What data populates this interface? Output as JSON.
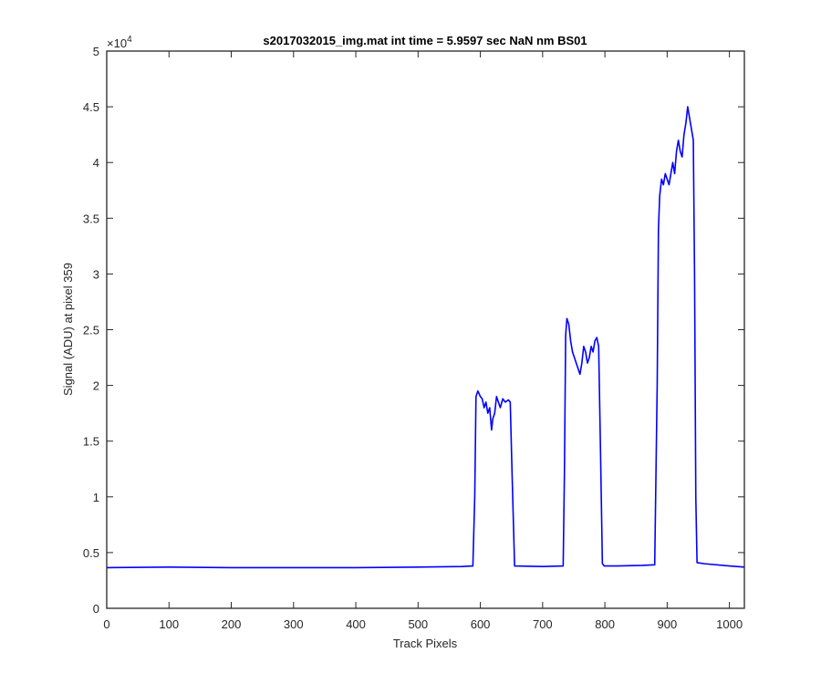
{
  "chart_data": {
    "type": "line",
    "title": "s2017032015_img.mat int time = 5.9597 sec  NaN nm BS01",
    "xlabel": "Track Pixels",
    "ylabel": "Signal (ADU) at pixel 359",
    "xlim": [
      0,
      1024
    ],
    "ylim": [
      0,
      50000
    ],
    "x_ticks": [
      0,
      100,
      200,
      300,
      400,
      500,
      600,
      700,
      800,
      900,
      1000
    ],
    "x_tick_labels": [
      "0",
      "100",
      "200",
      "300",
      "400",
      "500",
      "600",
      "700",
      "800",
      "900",
      "1000"
    ],
    "y_ticks": [
      0,
      5000,
      10000,
      15000,
      20000,
      25000,
      30000,
      35000,
      40000,
      45000,
      50000
    ],
    "y_tick_labels": [
      "0",
      "0.5",
      "1",
      "1.5",
      "2",
      "2.5",
      "3",
      "3.5",
      "4",
      "4.5",
      "5"
    ],
    "y_exponent": {
      "base": "×10",
      "power": "4"
    },
    "grid": false,
    "line_color": "#0000ff",
    "series": [
      {
        "values_x": [
          0,
          100,
          200,
          300,
          400,
          500,
          570,
          588,
          591,
          593,
          596,
          600,
          603,
          606,
          609,
          612,
          615,
          618,
          620,
          623,
          626,
          629,
          632,
          636,
          640,
          645,
          648,
          651,
          655,
          700,
          733,
          735,
          737,
          739,
          742,
          745,
          748,
          751,
          754,
          757,
          760,
          763,
          766,
          769,
          772,
          775,
          778,
          781,
          784,
          787,
          790,
          793,
          796,
          799,
          820,
          860,
          880,
          884,
          886,
          888,
          891,
          894,
          897,
          900,
          903,
          906,
          909,
          912,
          915,
          918,
          921,
          924,
          927,
          930,
          933,
          936,
          939,
          942,
          944,
          946,
          948,
          960,
          1000,
          1024
        ],
        "values_y": [
          3650,
          3700,
          3650,
          3650,
          3650,
          3700,
          3750,
          3800,
          10000,
          19000,
          19500,
          19000,
          18800,
          18000,
          18500,
          17500,
          18000,
          16000,
          17000,
          17500,
          19000,
          18500,
          18000,
          18800,
          18500,
          18700,
          18500,
          12000,
          3800,
          3750,
          3800,
          12000,
          24500,
          26000,
          25500,
          24000,
          23000,
          22500,
          22000,
          21500,
          21000,
          22000,
          23500,
          23000,
          22000,
          22500,
          23500,
          23000,
          24000,
          24300,
          23500,
          14000,
          4000,
          3800,
          3800,
          3850,
          3900,
          20000,
          34000,
          37000,
          38500,
          38000,
          39000,
          38500,
          38000,
          39000,
          40000,
          39000,
          41000,
          42000,
          41000,
          40500,
          42500,
          43500,
          45000,
          44000,
          43000,
          42000,
          30000,
          10000,
          4100,
          4000,
          3800,
          3700
        ]
      }
    ]
  }
}
